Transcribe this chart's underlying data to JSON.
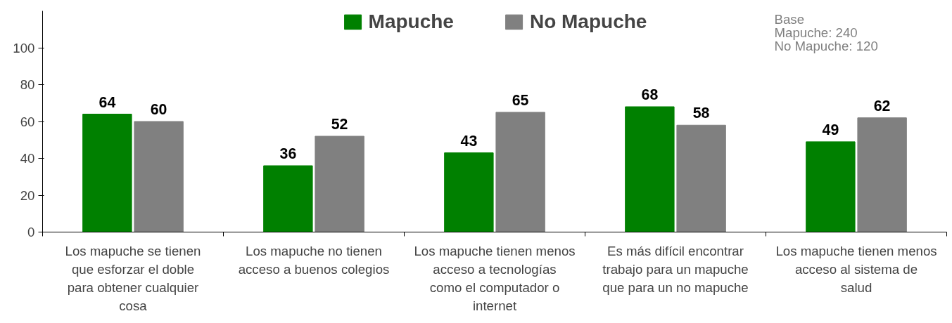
{
  "chart_data": {
    "type": "bar",
    "categories": [
      "Los mapuche se tienen que esforzar el doble para obtener cualquier cosa",
      "Los mapuche no tienen acceso a buenos colegios",
      "Los mapuche tienen menos acceso a tecnologías como el computador o internet",
      "Es más difícil encontrar trabajo para un mapuche que para un no mapuche",
      "Los mapuche tienen menos acceso al sistema de salud"
    ],
    "series": [
      {
        "name": "Mapuche",
        "color": "#008000",
        "values": [
          64,
          36,
          43,
          68,
          49
        ]
      },
      {
        "name": "No Mapuche",
        "color": "#808080",
        "values": [
          60,
          52,
          65,
          58,
          62
        ]
      }
    ],
    "ylim": [
      0,
      120
    ],
    "yticks": [
      0,
      20,
      40,
      60,
      80,
      100
    ],
    "grid": false,
    "legend": "top",
    "data_labels": true,
    "annotations": [
      "Base",
      "Mapuche:  240",
      "No Mapuche:  120"
    ]
  }
}
